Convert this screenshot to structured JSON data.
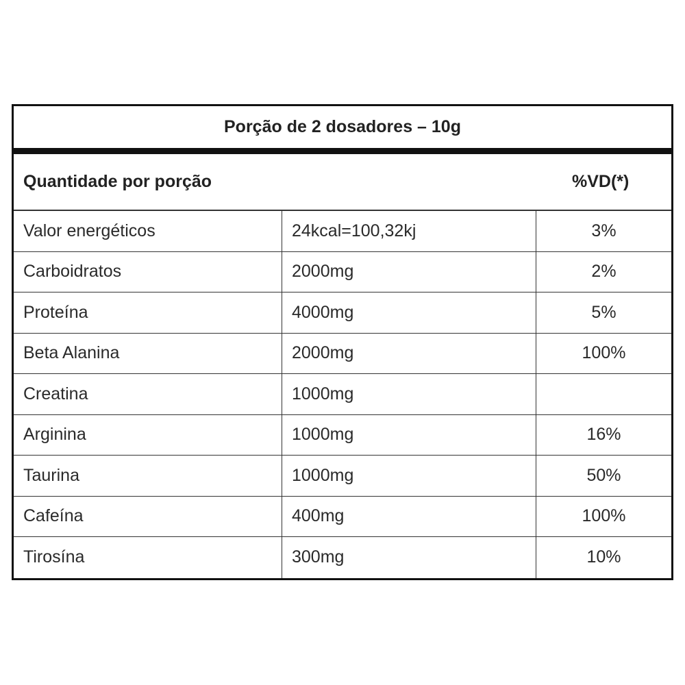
{
  "table": {
    "portion_title": "Porção de 2 dosadores – 10g",
    "quantity_header": "Quantidade por porção",
    "vd_header": "%VD(*)",
    "rows": [
      {
        "name": "Valor energéticos",
        "amount": "24kcal=100,32kj",
        "vd": "3%"
      },
      {
        "name": "Carboidratos",
        "amount": "2000mg",
        "vd": "2%"
      },
      {
        "name": "Proteína",
        "amount": "4000mg",
        "vd": "5%"
      },
      {
        "name": "Beta Alanina",
        "amount": "2000mg",
        "vd": "100%"
      },
      {
        "name": "Creatina",
        "amount": "1000mg",
        "vd": ""
      },
      {
        "name": "Arginina",
        "amount": "1000mg",
        "vd": "16%"
      },
      {
        "name": "Taurina",
        "amount": "1000mg",
        "vd": "50%"
      },
      {
        "name": "Cafeína",
        "amount": "400mg",
        "vd": "100%"
      },
      {
        "name": "Tirosína",
        "amount": "300mg",
        "vd": "10%"
      }
    ]
  }
}
